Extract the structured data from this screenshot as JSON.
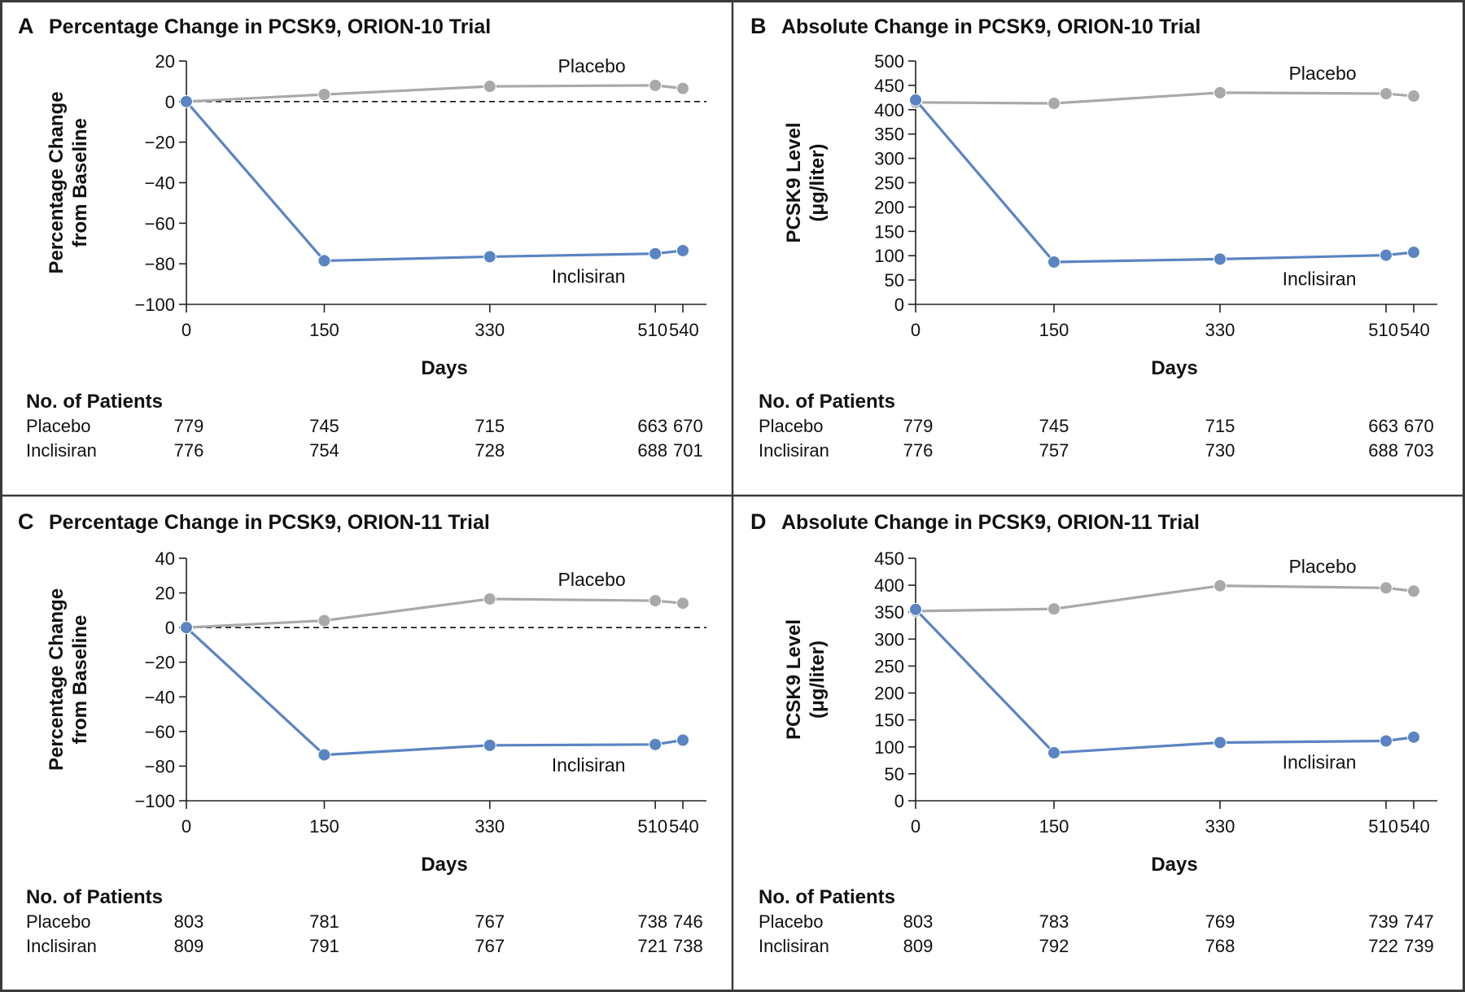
{
  "colors": {
    "inclisiran": "#5a84c2",
    "placebo": "#a9a9a9",
    "border": "#3a3a3a",
    "axis": "#222222"
  },
  "chart_data": [
    {
      "panel": "A",
      "type": "line",
      "title": "Percentage Change in PCSK9, ORION-10 Trial",
      "xlabel": "Days",
      "ylabel": [
        "Percentage Change",
        "from Baseline"
      ],
      "x": [
        0,
        150,
        330,
        510,
        540
      ],
      "xticks": [
        0,
        150,
        330,
        510,
        540
      ],
      "yticks": [
        20,
        0,
        -20,
        -40,
        -60,
        -80,
        -100
      ],
      "ytick_labels": [
        "20",
        "0",
        "−20",
        "−40",
        "−60",
        "−80",
        "−100"
      ],
      "ylim": [
        -100,
        20
      ],
      "reference_line": 0,
      "series": [
        {
          "name": "Placebo",
          "values": [
            0,
            3.5,
            7.5,
            8,
            6.5
          ]
        },
        {
          "name": "Inclisiran",
          "values": [
            0,
            -78.5,
            -76.5,
            -75,
            -73.5
          ]
        }
      ],
      "patients": {
        "title": "No. of Patients",
        "rows": [
          {
            "label": "Placebo",
            "values": [
              "779",
              "745",
              "715",
              "663",
              "670"
            ]
          },
          {
            "label": "Inclisiran",
            "values": [
              "776",
              "754",
              "728",
              "688",
              "701"
            ]
          }
        ]
      }
    },
    {
      "panel": "B",
      "type": "line",
      "title": "Absolute Change in PCSK9, ORION-10 Trial",
      "xlabel": "Days",
      "ylabel": [
        "PCSK9 Level",
        "(μg/liter)"
      ],
      "x": [
        0,
        150,
        330,
        510,
        540
      ],
      "xticks": [
        0,
        150,
        330,
        510,
        540
      ],
      "yticks": [
        500,
        450,
        400,
        350,
        300,
        250,
        200,
        150,
        100,
        50,
        0
      ],
      "ytick_labels": [
        "500",
        "450",
        "400",
        "350",
        "300",
        "250",
        "200",
        "150",
        "100",
        "50",
        "0"
      ],
      "ylim": [
        0,
        500
      ],
      "series": [
        {
          "name": "Placebo",
          "values": [
            415,
            413,
            435,
            433,
            428
          ]
        },
        {
          "name": "Inclisiran",
          "values": [
            420,
            87,
            93,
            101,
            107
          ]
        }
      ],
      "patients": {
        "title": "No. of Patients",
        "rows": [
          {
            "label": "Placebo",
            "values": [
              "779",
              "745",
              "715",
              "663",
              "670"
            ]
          },
          {
            "label": "Inclisiran",
            "values": [
              "776",
              "757",
              "730",
              "688",
              "703"
            ]
          }
        ]
      }
    },
    {
      "panel": "C",
      "type": "line",
      "title": "Percentage Change in PCSK9, ORION-11 Trial",
      "xlabel": "Days",
      "ylabel": [
        "Percentage Change",
        "from Baseline"
      ],
      "x": [
        0,
        150,
        330,
        510,
        540
      ],
      "xticks": [
        0,
        150,
        330,
        510,
        540
      ],
      "yticks": [
        40,
        20,
        0,
        -20,
        -40,
        -60,
        -80,
        -100
      ],
      "ytick_labels": [
        "40",
        "20",
        "0",
        "−20",
        "−40",
        "−60",
        "−80",
        "−100"
      ],
      "ylim": [
        -100,
        40
      ],
      "reference_line": 0,
      "series": [
        {
          "name": "Placebo",
          "values": [
            0,
            4,
            16.5,
            15.5,
            14
          ]
        },
        {
          "name": "Inclisiran",
          "values": [
            0,
            -73.5,
            -68,
            -67.5,
            -65
          ]
        }
      ],
      "patients": {
        "title": "No. of Patients",
        "rows": [
          {
            "label": "Placebo",
            "values": [
              "803",
              "781",
              "767",
              "738",
              "746"
            ]
          },
          {
            "label": "Inclisiran",
            "values": [
              "809",
              "791",
              "767",
              "721",
              "738"
            ]
          }
        ]
      }
    },
    {
      "panel": "D",
      "type": "line",
      "title": "Absolute Change in PCSK9, ORION-11 Trial",
      "xlabel": "Days",
      "ylabel": [
        "PCSK9 Level",
        "(μg/liter)"
      ],
      "x": [
        0,
        150,
        330,
        510,
        540
      ],
      "xticks": [
        0,
        150,
        330,
        510,
        540
      ],
      "yticks": [
        450,
        400,
        350,
        300,
        250,
        200,
        150,
        100,
        50,
        0
      ],
      "ytick_labels": [
        "450",
        "400",
        "350",
        "300",
        "250",
        "200",
        "150",
        "100",
        "50",
        "0"
      ],
      "ylim": [
        0,
        450
      ],
      "series": [
        {
          "name": "Placebo",
          "values": [
            352,
            356,
            399,
            395,
            389
          ]
        },
        {
          "name": "Inclisiran",
          "values": [
            355,
            89,
            108,
            111,
            118
          ]
        }
      ],
      "patients": {
        "title": "No. of Patients",
        "rows": [
          {
            "label": "Placebo",
            "values": [
              "803",
              "783",
              "769",
              "739",
              "747"
            ]
          },
          {
            "label": "Inclisiran",
            "values": [
              "809",
              "792",
              "768",
              "722",
              "739"
            ]
          }
        ]
      }
    }
  ]
}
